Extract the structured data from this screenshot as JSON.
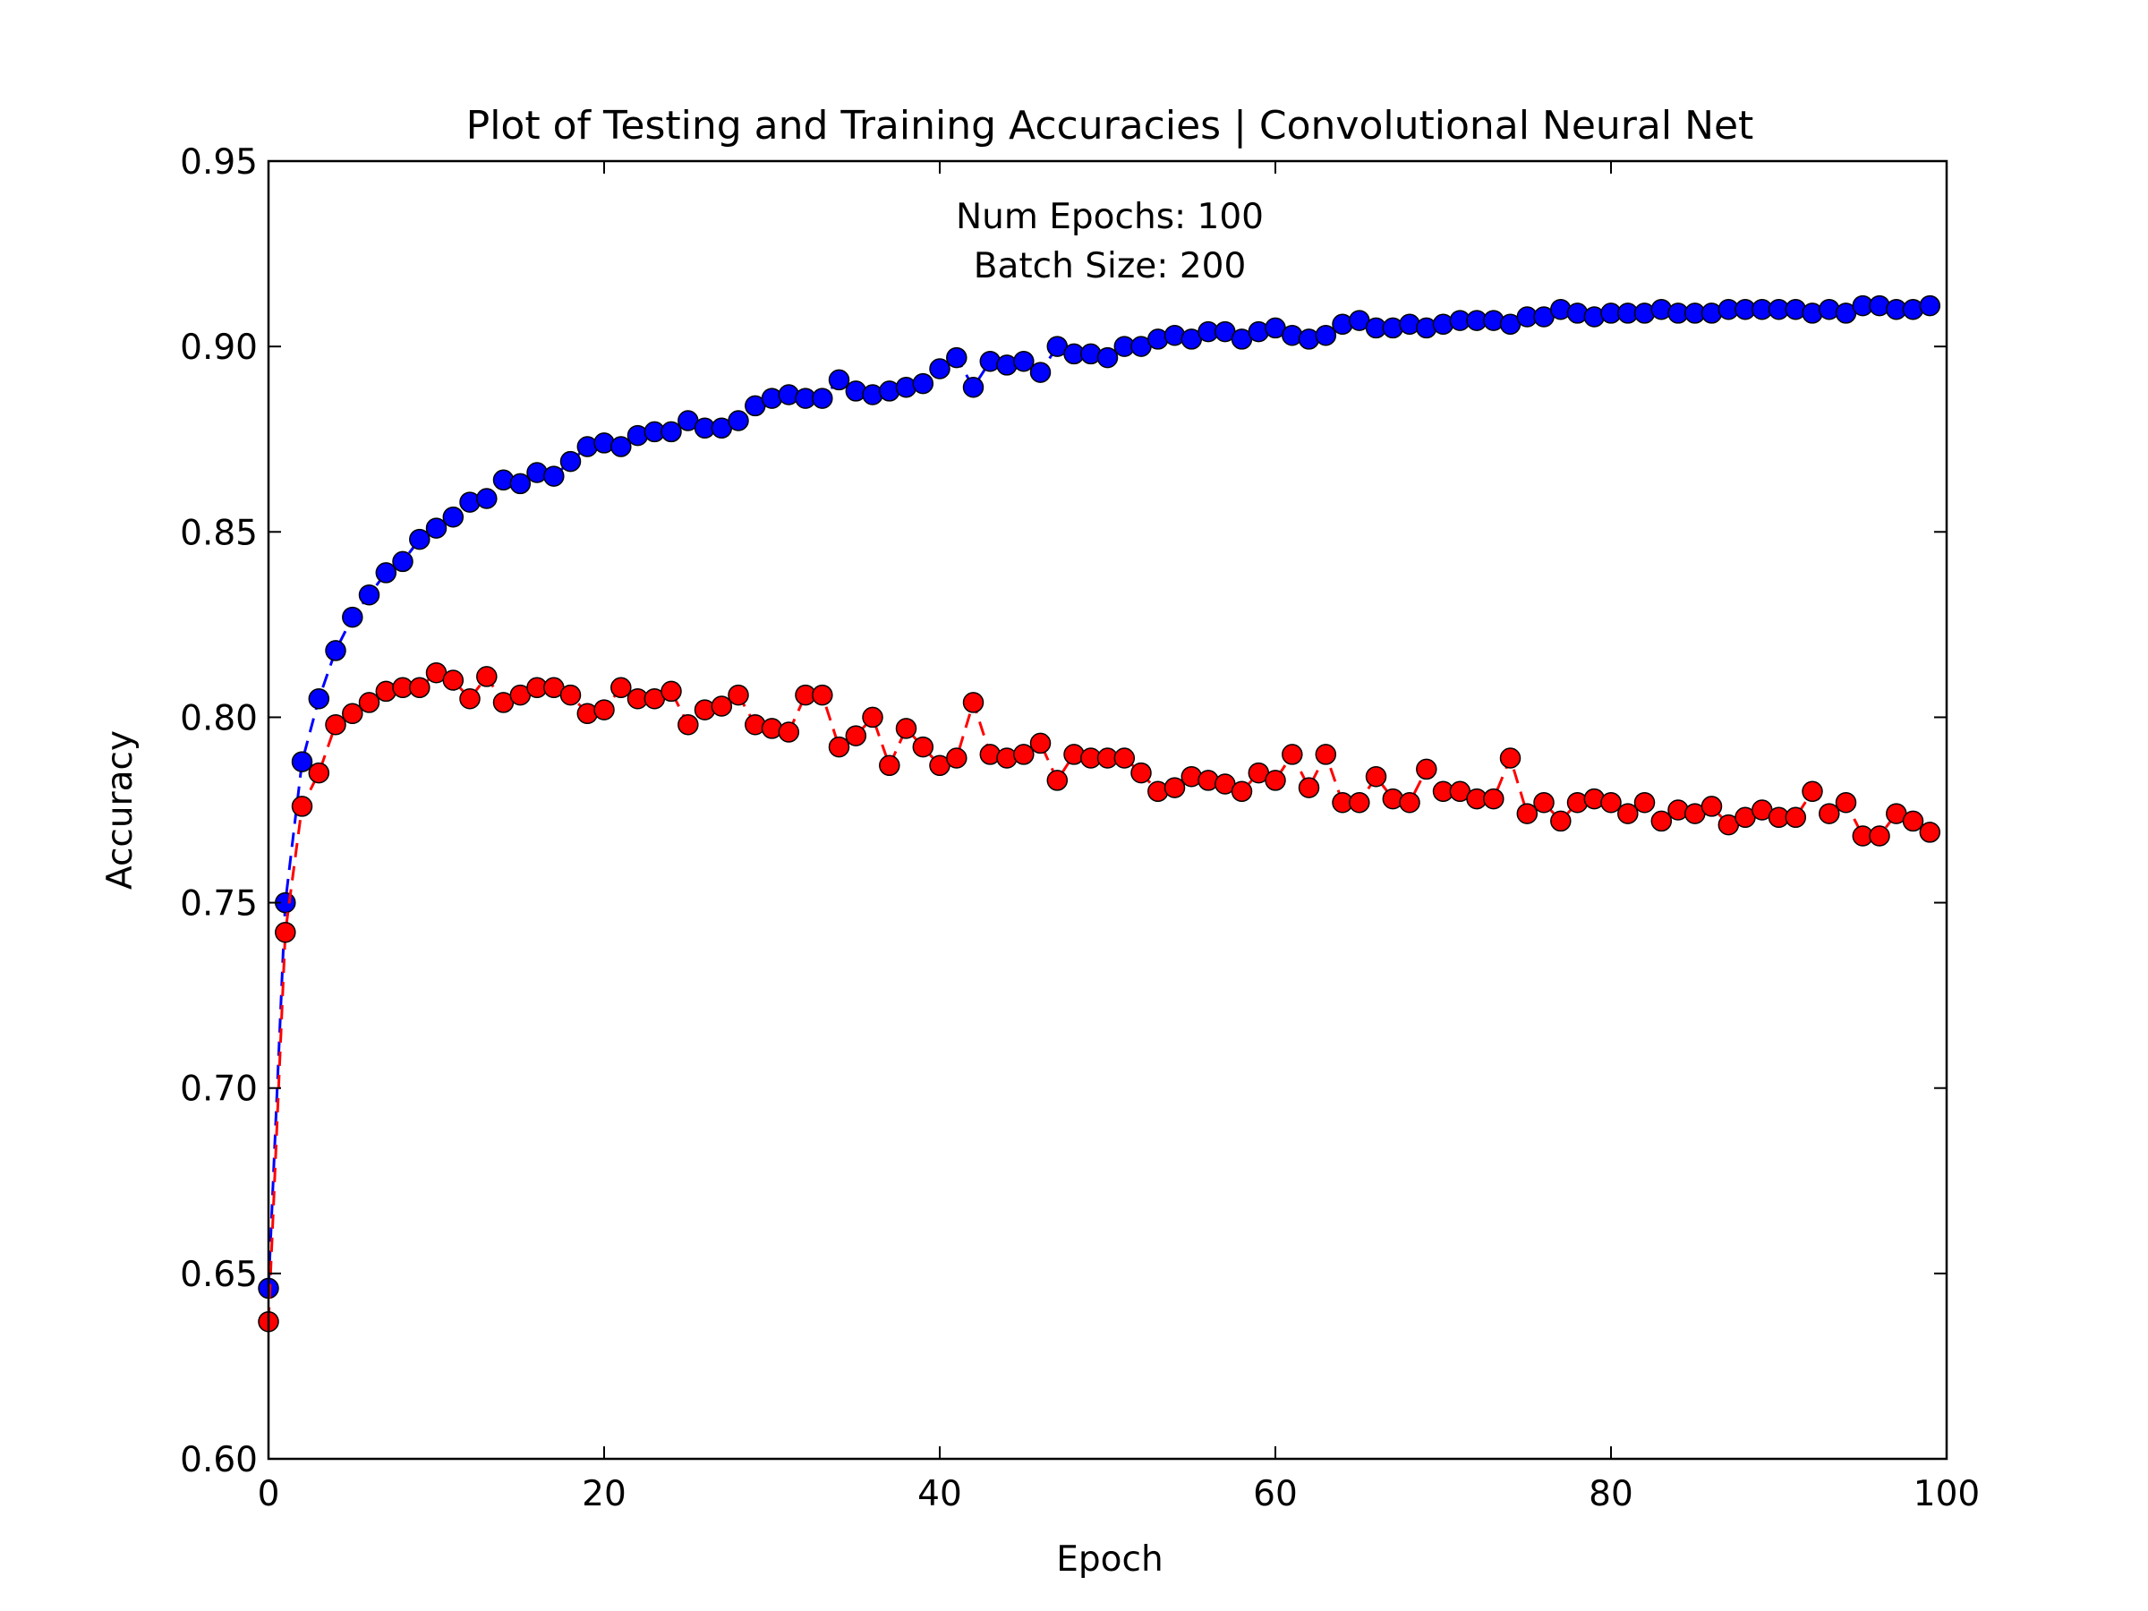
{
  "chart_data": {
    "type": "line",
    "title": "Plot of Testing and Training Accuracies | Convolutional Neural Net",
    "xlabel": "Epoch",
    "ylabel": "Accuracy",
    "xlim": [
      0,
      100
    ],
    "ylim": [
      0.6,
      0.95
    ],
    "x_ticks": [
      "0",
      "20",
      "40",
      "60",
      "80",
      "100"
    ],
    "y_ticks": [
      "0.60",
      "0.65",
      "0.70",
      "0.75",
      "0.80",
      "0.85",
      "0.90",
      "0.95"
    ],
    "annotation": [
      "Num Epochs: 100",
      "Batch Size: 200"
    ],
    "grid": false,
    "legend": "none",
    "series": [
      {
        "color": "#0000ff",
        "line_style": "dashed",
        "marker": "circle",
        "x": [
          0,
          1,
          2,
          3,
          4,
          5,
          6,
          7,
          8,
          9,
          10,
          11,
          12,
          13,
          14,
          15,
          16,
          17,
          18,
          19,
          20,
          21,
          22,
          23,
          24,
          25,
          26,
          27,
          28,
          29,
          30,
          31,
          32,
          33,
          34,
          35,
          36,
          37,
          38,
          39,
          40,
          41,
          42,
          43,
          44,
          45,
          46,
          47,
          48,
          49,
          50,
          51,
          52,
          53,
          54,
          55,
          56,
          57,
          58,
          59,
          60,
          61,
          62,
          63,
          64,
          65,
          66,
          67,
          68,
          69,
          70,
          71,
          72,
          73,
          74,
          75,
          76,
          77,
          78,
          79,
          80,
          81,
          82,
          83,
          84,
          85,
          86,
          87,
          88,
          89,
          90,
          91,
          92,
          93,
          94,
          95,
          96,
          97,
          98,
          99
        ],
        "values": [
          0.646,
          0.75,
          0.788,
          0.805,
          0.818,
          0.827,
          0.833,
          0.839,
          0.842,
          0.848,
          0.851,
          0.854,
          0.858,
          0.859,
          0.864,
          0.863,
          0.866,
          0.865,
          0.869,
          0.873,
          0.874,
          0.873,
          0.876,
          0.877,
          0.877,
          0.88,
          0.878,
          0.878,
          0.88,
          0.884,
          0.886,
          0.887,
          0.886,
          0.886,
          0.891,
          0.888,
          0.887,
          0.888,
          0.889,
          0.89,
          0.894,
          0.897,
          0.889,
          0.896,
          0.895,
          0.896,
          0.893,
          0.9,
          0.898,
          0.898,
          0.897,
          0.9,
          0.9,
          0.902,
          0.903,
          0.902,
          0.904,
          0.904,
          0.902,
          0.904,
          0.905,
          0.903,
          0.902,
          0.903,
          0.906,
          0.907,
          0.905,
          0.905,
          0.906,
          0.905,
          0.906,
          0.907,
          0.907,
          0.907,
          0.906,
          0.908,
          0.908,
          0.91,
          0.909,
          0.908,
          0.909,
          0.909,
          0.909,
          0.91,
          0.909,
          0.909,
          0.909,
          0.91,
          0.91,
          0.91,
          0.91,
          0.91,
          0.909,
          0.91,
          0.909,
          0.911,
          0.911,
          0.91,
          0.91,
          0.911
        ]
      },
      {
        "color": "#ff0000",
        "line_style": "dashed",
        "marker": "circle",
        "x": [
          0,
          1,
          2,
          3,
          4,
          5,
          6,
          7,
          8,
          9,
          10,
          11,
          12,
          13,
          14,
          15,
          16,
          17,
          18,
          19,
          20,
          21,
          22,
          23,
          24,
          25,
          26,
          27,
          28,
          29,
          30,
          31,
          32,
          33,
          34,
          35,
          36,
          37,
          38,
          39,
          40,
          41,
          42,
          43,
          44,
          45,
          46,
          47,
          48,
          49,
          50,
          51,
          52,
          53,
          54,
          55,
          56,
          57,
          58,
          59,
          60,
          61,
          62,
          63,
          64,
          65,
          66,
          67,
          68,
          69,
          70,
          71,
          72,
          73,
          74,
          75,
          76,
          77,
          78,
          79,
          80,
          81,
          82,
          83,
          84,
          85,
          86,
          87,
          88,
          89,
          90,
          91,
          92,
          93,
          94,
          95,
          96,
          97,
          98,
          99
        ],
        "values": [
          0.637,
          0.742,
          0.776,
          0.785,
          0.798,
          0.801,
          0.804,
          0.807,
          0.808,
          0.808,
          0.812,
          0.81,
          0.805,
          0.811,
          0.804,
          0.806,
          0.808,
          0.808,
          0.806,
          0.801,
          0.802,
          0.808,
          0.805,
          0.805,
          0.807,
          0.798,
          0.802,
          0.803,
          0.806,
          0.798,
          0.797,
          0.796,
          0.806,
          0.806,
          0.792,
          0.795,
          0.8,
          0.787,
          0.797,
          0.792,
          0.787,
          0.789,
          0.804,
          0.79,
          0.789,
          0.79,
          0.793,
          0.783,
          0.79,
          0.789,
          0.789,
          0.789,
          0.785,
          0.78,
          0.781,
          0.784,
          0.783,
          0.782,
          0.78,
          0.785,
          0.783,
          0.79,
          0.781,
          0.79,
          0.777,
          0.777,
          0.784,
          0.778,
          0.777,
          0.786,
          0.78,
          0.78,
          0.778,
          0.778,
          0.789,
          0.774,
          0.777,
          0.772,
          0.777,
          0.778,
          0.777,
          0.774,
          0.777,
          0.772,
          0.775,
          0.774,
          0.776,
          0.771,
          0.773,
          0.775,
          0.773,
          0.773,
          0.78,
          0.774,
          0.777,
          0.768,
          0.768,
          0.774,
          0.772,
          0.769
        ]
      }
    ]
  }
}
